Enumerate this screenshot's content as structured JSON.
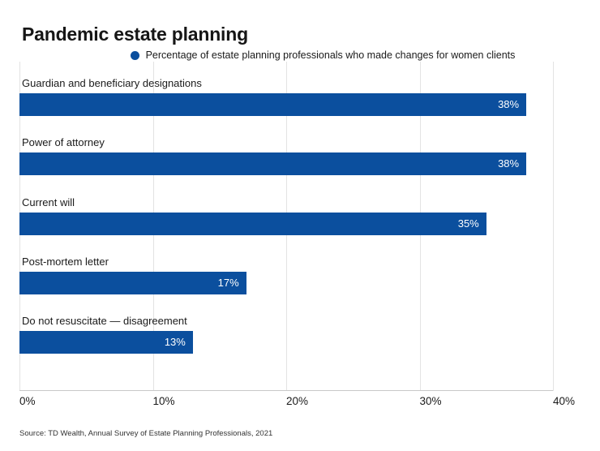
{
  "title": "Pandemic estate planning",
  "legend": {
    "label": "Percentage of estate planning professionals who made changes for women clients"
  },
  "source": "Source: TD Wealth, Annual Survey of Estate Planning Professionals, 2021",
  "colors": {
    "bar": "#0b4f9e",
    "legend_marker": "#0b4f9e",
    "grid": "#e3e3e3",
    "axis_line": "#c9c9c9"
  },
  "chart_data": {
    "type": "bar",
    "orientation": "horizontal",
    "title": "Pandemic estate planning",
    "legend_entries": [
      "Percentage of estate planning professionals who made changes for women clients"
    ],
    "legend_position": "top-center",
    "categories": [
      "Guardian and beneficiary designations",
      "Power of attorney",
      "Current will",
      "Post-mortem letter",
      "Do not resuscitate — disagreement"
    ],
    "values": [
      38,
      38,
      35,
      17,
      13
    ],
    "value_labels": [
      "38%",
      "38%",
      "35%",
      "17%",
      "13%"
    ],
    "x_ticks": [
      {
        "value": 0,
        "label": "0%"
      },
      {
        "value": 10,
        "label": "10%"
      },
      {
        "value": 20,
        "label": "20%"
      },
      {
        "value": 30,
        "label": "30%"
      },
      {
        "value": 40,
        "label": "40%"
      }
    ],
    "xlim": [
      0,
      40
    ],
    "grid": true,
    "ylabel": "",
    "xlabel": "",
    "source": "Source: TD Wealth, Annual Survey of Estate Planning Professionals, 2021"
  }
}
